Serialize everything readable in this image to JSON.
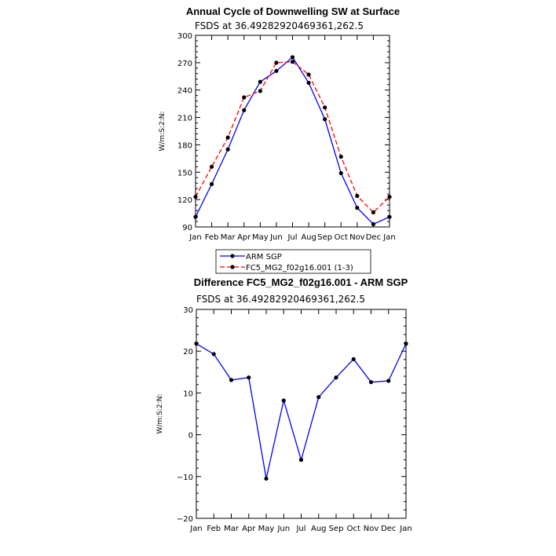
{
  "chart_data": [
    {
      "type": "line",
      "title": "Annual Cycle of Downwelling SW at Surface",
      "subtitle": "FSDS at 36.49282920469361,262.5",
      "ylabel": "W/m:S:2:N:",
      "xlabel": "",
      "categories": [
        "Jan",
        "Feb",
        "Mar",
        "Apr",
        "May",
        "Jun",
        "Jul",
        "Aug",
        "Sep",
        "Oct",
        "Nov",
        "Dec",
        "Jan"
      ],
      "ylim": [
        90,
        300
      ],
      "yticks": [
        90,
        120,
        150,
        180,
        210,
        240,
        270,
        300
      ],
      "series": [
        {
          "name": "ARM SGP",
          "color": "#0000ff",
          "dash": "solid",
          "values": [
            101,
            137,
            175,
            218,
            249,
            261,
            276,
            248,
            208,
            149,
            111,
            93,
            101
          ]
        },
        {
          "name": "FC5_MG2_f02g16.001 (1-3)",
          "color": "#ff0000",
          "dash": "dashed",
          "values": [
            123,
            156,
            188,
            232,
            239,
            270,
            271,
            257,
            221,
            167,
            124,
            106,
            123
          ]
        }
      ],
      "legend": "bottom"
    },
    {
      "type": "line",
      "title": "Difference FC5_MG2_f02g16.001 - ARM SGP",
      "subtitle": "FSDS at 36.49282920469361,262.5",
      "ylabel": "W/m:S:2:N:",
      "xlabel": "",
      "categories": [
        "Jan",
        "Feb",
        "Mar",
        "Apr",
        "May",
        "Jun",
        "Jul",
        "Aug",
        "Sep",
        "Oct",
        "Nov",
        "Dec",
        "Jan"
      ],
      "ylim": [
        -20,
        30
      ],
      "yticks": [
        -20,
        -10,
        0,
        10,
        20,
        30
      ],
      "series": [
        {
          "color": "#0000ff",
          "dash": "solid",
          "values": [
            21.8,
            19.3,
            13.1,
            13.7,
            -10.5,
            8.2,
            -6.0,
            9.0,
            13.7,
            18.1,
            12.6,
            12.9,
            21.8
          ]
        }
      ]
    }
  ]
}
